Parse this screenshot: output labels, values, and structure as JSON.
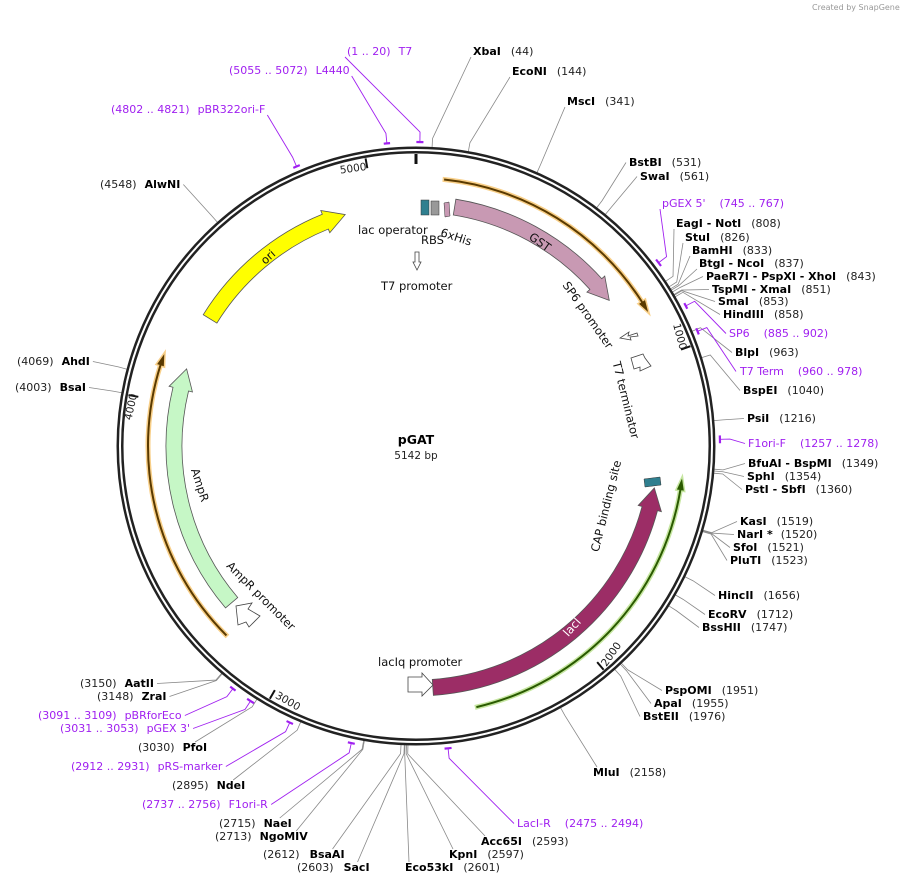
{
  "credit": "Created by  SnapGene",
  "plasmid": {
    "name": "pGAT",
    "length_label": "5142 bp",
    "length": 5142
  },
  "colors": {
    "ring": "#222222",
    "primer": "#a020f0",
    "gst": "#c899b3",
    "laci": "#9c2d66",
    "ampr": "#c6f7c6",
    "ori": "#ffff00",
    "orf_orange": "#f6c36a",
    "orf_green": "#b8e08a",
    "teal": "#2f7f8f"
  },
  "ticks": [
    "5000",
    "1000",
    "2000",
    "3000",
    "4000"
  ],
  "features": [
    {
      "name": "GST",
      "start": 131,
      "end": 757,
      "dir": 1
    },
    {
      "name": "lacI",
      "start": 1428,
      "end": 2514,
      "dir": -1
    },
    {
      "name": "AmpR",
      "start": 3280,
      "end": 4122,
      "dir": 1
    },
    {
      "name": "ori",
      "start": 4309,
      "end": 4899,
      "dir": 1
    },
    {
      "name": "lac operator"
    },
    {
      "name": "RBS"
    },
    {
      "name": "6xHis"
    },
    {
      "name": "T7 promoter"
    },
    {
      "name": "SP6 promoter"
    },
    {
      "name": "T7 terminator"
    },
    {
      "name": "CAP binding site"
    },
    {
      "name": "lacIq promoter"
    },
    {
      "name": "AmpR promoter"
    }
  ],
  "orfs": [
    {
      "start": 86,
      "end": 857,
      "dir": 1,
      "color": "orange"
    },
    {
      "start": 1385,
      "end": 2385,
      "dir": -1,
      "color": "green"
    },
    {
      "start": 3214,
      "end": 4143,
      "dir": 1,
      "color": "orange"
    }
  ],
  "sites": [
    {
      "name": "XbaI",
      "pos": 44
    },
    {
      "name": "EcoNI",
      "pos": 144
    },
    {
      "name": "MscI",
      "pos": 341
    },
    {
      "name": "BstBI",
      "pos": 531
    },
    {
      "name": "SwaI",
      "pos": 561
    },
    {
      "name": "EagI  - NotI",
      "pos": 808
    },
    {
      "name": "StuI",
      "pos": 826
    },
    {
      "name": "BamHI",
      "pos": 833
    },
    {
      "name": "BtgI  - NcoI",
      "pos": 837
    },
    {
      "name": "PaeR7I  - PspXI  - XhoI",
      "pos": 843
    },
    {
      "name": "TspMI  - XmaI",
      "pos": 851
    },
    {
      "name": "SmaI",
      "pos": 853
    },
    {
      "name": "HindIII",
      "pos": 858
    },
    {
      "name": "BlpI",
      "pos": 963
    },
    {
      "name": "BspEI",
      "pos": 1040
    },
    {
      "name": "PsiI",
      "pos": 1216
    },
    {
      "name": "BfuAI  - BspMI",
      "pos": 1349
    },
    {
      "name": "SphI",
      "pos": 1354
    },
    {
      "name": "PstI  - SbfI",
      "pos": 1360
    },
    {
      "name": "KasI",
      "pos": 1519
    },
    {
      "name": "NarI *",
      "pos": 1520
    },
    {
      "name": "SfoI",
      "pos": 1521
    },
    {
      "name": "PluTI",
      "pos": 1523
    },
    {
      "name": "HincII",
      "pos": 1656
    },
    {
      "name": "EcoRV",
      "pos": 1712
    },
    {
      "name": "BssHII",
      "pos": 1747
    },
    {
      "name": "PspOMI",
      "pos": 1951
    },
    {
      "name": "ApaI",
      "pos": 1955
    },
    {
      "name": "BstEII",
      "pos": 1976
    },
    {
      "name": "MluI",
      "pos": 2158
    },
    {
      "name": "Acc65I",
      "pos": 2593
    },
    {
      "name": "KpnI",
      "pos": 2597
    },
    {
      "name": "Eco53kI",
      "pos": 2601
    },
    {
      "name": "SacI",
      "pos": 2603
    },
    {
      "name": "BsaAI",
      "pos": 2612
    },
    {
      "name": "NgoMIV",
      "pos": 2713
    },
    {
      "name": "NaeI",
      "pos": 2715
    },
    {
      "name": "NdeI",
      "pos": 2895
    },
    {
      "name": "PfoI",
      "pos": 3030
    },
    {
      "name": "ZraI",
      "pos": 3148
    },
    {
      "name": "AatII",
      "pos": 3150
    },
    {
      "name": "BsaI",
      "pos": 4003
    },
    {
      "name": "AhdI",
      "pos": 4069
    },
    {
      "name": "AlwNI",
      "pos": 4548
    }
  ],
  "primers": [
    {
      "name": "T7",
      "range": "(1 .. 20)",
      "start": 1,
      "end": 20
    },
    {
      "name": "L4440",
      "range": "(5055 .. 5072)",
      "start": 5055,
      "end": 5072
    },
    {
      "name": "pBR322ori-F",
      "range": "(4802 .. 4821)",
      "start": 4802,
      "end": 4821
    },
    {
      "name": "pGEX 5'",
      "range": "(745 .. 767)",
      "start": 745,
      "end": 767
    },
    {
      "name": "SP6",
      "range": "(885 .. 902)",
      "start": 885,
      "end": 902
    },
    {
      "name": "T7 Term",
      "range": "(960 .. 978)",
      "start": 960,
      "end": 978
    },
    {
      "name": "F1ori-F",
      "range": "(1257 .. 1278)",
      "start": 1257,
      "end": 1278
    },
    {
      "name": "LacI-R",
      "range": "(2475 .. 2494)",
      "start": 2475,
      "end": 2494
    },
    {
      "name": "F1ori-R",
      "range": "(2737 .. 2756)",
      "start": 2737,
      "end": 2756
    },
    {
      "name": "pRS-marker",
      "range": "(2912 .. 2931)",
      "start": 2912,
      "end": 2931
    },
    {
      "name": "pGEX 3'",
      "range": "(3031 .. 3053)",
      "start": 3031,
      "end": 3053
    },
    {
      "name": "pBRforEco",
      "range": "(3091 .. 3109)",
      "start": 3091,
      "end": 3109
    }
  ]
}
